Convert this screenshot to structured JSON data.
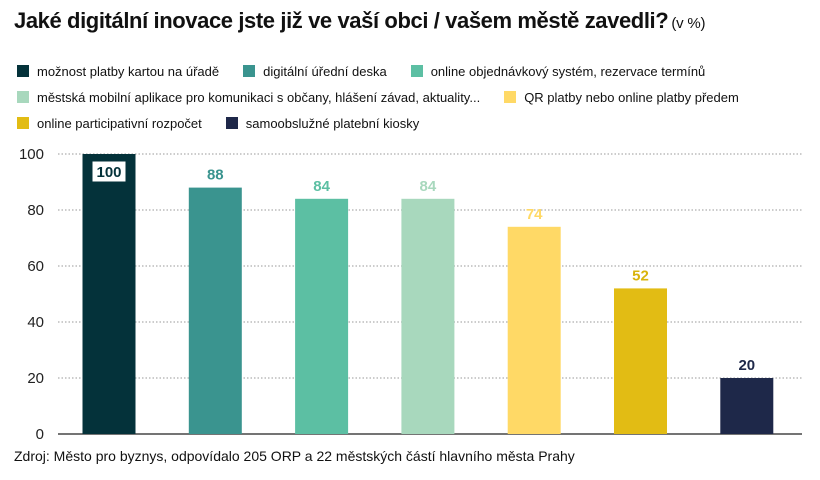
{
  "title": "Jaké digitální inovace jste již ve vaší obci / vašem městě zavedli?",
  "unit": "(v %)",
  "legend_rows": [
    [
      0,
      1,
      2
    ],
    [
      3,
      4
    ],
    [
      5,
      6
    ]
  ],
  "source": "Zdroj: Město pro byznys, odpovídalo 205 ORP a 22 městských částí hlavního města Prahy",
  "chart_data": {
    "type": "bar",
    "title": "Jaké digitální inovace jste již ve vaší obci / vašem městě zavedli?",
    "ylabel": "",
    "xlabel": "",
    "ylim": [
      0,
      100
    ],
    "yticks": [
      0,
      20,
      40,
      60,
      80,
      100
    ],
    "grid": true,
    "legend_position": "top",
    "series": [
      {
        "name": "možnost platby kartou na úřadě",
        "value": 100,
        "color": "#04323a",
        "label_color": "#ffffff",
        "label_box": "#04323a"
      },
      {
        "name": "digitální úřední deska",
        "value": 88,
        "color": "#3a948f",
        "label_color": "#3a948f"
      },
      {
        "name": "online objednávkový systém, rezervace termínů",
        "value": 84,
        "color": "#5cbfa3",
        "label_color": "#5cbfa3"
      },
      {
        "name": "městská mobilní aplikace pro komunikaci s občany, hlášení závad, aktuality...",
        "value": 84,
        "color": "#a8d8bd",
        "label_color": "#a8d8bd"
      },
      {
        "name": "QR platby nebo online platby předem",
        "value": 74,
        "color": "#ffd966",
        "label_color": "#ffd966"
      },
      {
        "name": "online participativní rozpočet",
        "value": 52,
        "color": "#e2bc14",
        "label_color": "#d9b40c"
      },
      {
        "name": "samoobslužné platební kiosky",
        "value": 20,
        "color": "#1e2849",
        "label_color": "#1e2849"
      }
    ]
  }
}
